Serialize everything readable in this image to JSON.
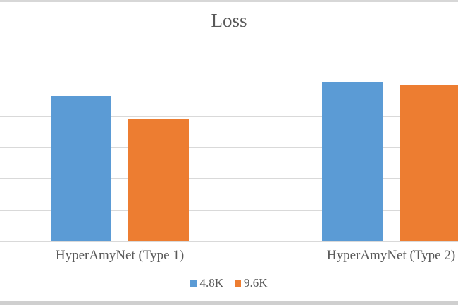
{
  "colors": {
    "blue": "#5B9BD5",
    "orange": "#ED7D31",
    "gridline": "#D9D9D9",
    "axis": "#D9D9D9",
    "title_text": "#595959",
    "label_text": "#595959",
    "border_top": "#D7D7D7",
    "border_bottom": "#CFCFCF"
  },
  "chart_data": {
    "type": "bar",
    "title": "Loss",
    "categories": [
      "HyperAmyNet (Type 1)",
      "HyperAmyNet (Type 2)"
    ],
    "series": [
      {
        "name": "4.8K",
        "color": "#5B9BD5",
        "values": [
          4.64,
          5.1
        ]
      },
      {
        "name": "9.6K",
        "color": "#ED7D31",
        "values": [
          3.9,
          5.01
        ]
      }
    ],
    "ylim": [
      0,
      6
    ],
    "y_tick_labels_visible": false,
    "value_units": "gridline intervals (y-axis tick labels are cropped out of the screenshot)",
    "grid": true,
    "legend_position": "bottom",
    "xlabel": "",
    "ylabel": ""
  }
}
